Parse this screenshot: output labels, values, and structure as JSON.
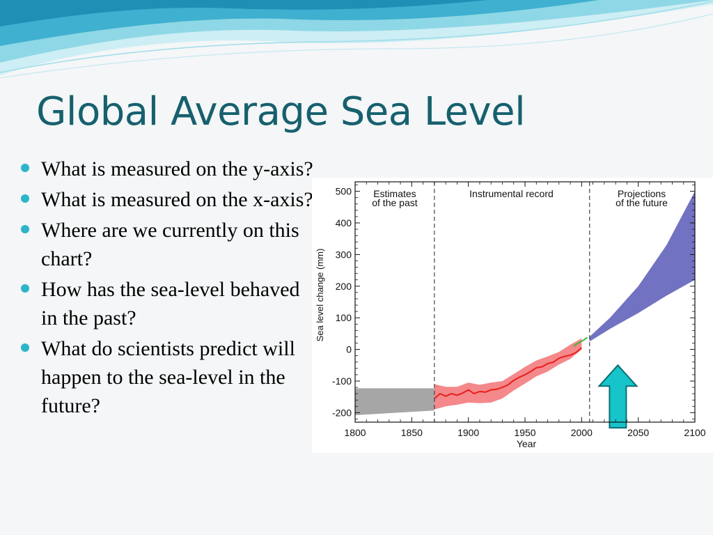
{
  "slide": {
    "title": "Global Average Sea Level",
    "bullets": [
      "What is measured on the y-axis?",
      "What is measured on the x-axis?",
      "Where are we currently on this chart?",
      "How has the sea-level behaved in the past?",
      "What do scientists predict will happen to the sea-level in the future?"
    ],
    "colors": {
      "title": "#17606e",
      "bullet_dot": "#2bb5c9",
      "wave_light": "#bfe9f1",
      "wave_mid": "#7fd2e4",
      "wave_dark": "#2aa3c4"
    }
  },
  "chart_data": {
    "type": "area",
    "title": "",
    "xlabel": "Year",
    "ylabel": "Sea level change (mm)",
    "xlim": [
      1800,
      2100
    ],
    "ylim": [
      -230,
      530
    ],
    "x_ticks": [
      1800,
      1850,
      1900,
      1950,
      2000,
      2050,
      2100
    ],
    "y_ticks": [
      -200,
      -100,
      0,
      100,
      200,
      300,
      400,
      500
    ],
    "grid": false,
    "period_dividers": [
      1870,
      2007
    ],
    "period_labels": [
      {
        "text": "Estimates\nof the past",
        "x": 1835
      },
      {
        "text": "Instrumental record",
        "x": 1938
      },
      {
        "text": "Projections\nof the future",
        "x": 2053
      }
    ],
    "series": [
      {
        "color": "#a6a6a6",
        "band": {
          "x": [
            1800,
            1870
          ],
          "lower": [
            -208,
            -193
          ],
          "upper": [
            -123,
            -123
          ]
        }
      },
      {
        "color": "#e81e1e",
        "band_color": "#f4888a",
        "band": {
          "x": [
            1870,
            1880,
            1890,
            1900,
            1910,
            1920,
            1930,
            1940,
            1950,
            1960,
            1970,
            1980,
            1990,
            2000
          ],
          "lower": [
            -190,
            -180,
            -175,
            -168,
            -170,
            -168,
            -155,
            -130,
            -108,
            -85,
            -70,
            -48,
            -30,
            0
          ],
          "upper": [
            -110,
            -118,
            -118,
            -105,
            -112,
            -105,
            -100,
            -78,
            -55,
            -35,
            -22,
            -8,
            15,
            35
          ]
        },
        "x": [
          1870,
          1875,
          1880,
          1885,
          1890,
          1895,
          1900,
          1905,
          1910,
          1915,
          1920,
          1925,
          1930,
          1935,
          1940,
          1945,
          1950,
          1955,
          1960,
          1965,
          1970,
          1975,
          1980,
          1985,
          1990,
          1995,
          2000
        ],
        "values": [
          -155,
          -140,
          -148,
          -140,
          -145,
          -138,
          -128,
          -140,
          -133,
          -135,
          -128,
          -126,
          -120,
          -112,
          -98,
          -88,
          -80,
          -70,
          -58,
          -55,
          -45,
          -40,
          -28,
          -22,
          -18,
          -10,
          5
        ]
      },
      {
        "color": "#3db83d",
        "x": [
          1993,
          1996,
          1999,
          2002,
          2005
        ],
        "values": [
          10,
          18,
          24,
          30,
          38
        ]
      },
      {
        "color": "#7272c2",
        "band": {
          "x": [
            2007,
            2025,
            2050,
            2075,
            2100
          ],
          "lower": [
            25,
            65,
            115,
            170,
            220
          ],
          "upper": [
            40,
            100,
            200,
            330,
            500
          ]
        }
      }
    ],
    "annotation_arrow": {
      "x": 2032,
      "y_bottom": -248,
      "y_top": -50,
      "color": "#17c4c9"
    }
  }
}
